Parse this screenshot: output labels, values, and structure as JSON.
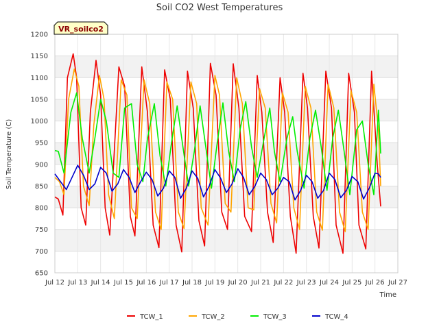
{
  "chart_data": {
    "type": "line",
    "title": "Soil CO2 West Temperatures",
    "xlabel": "Time",
    "ylabel": "Soil Temperature (C)",
    "badge": "VR_soilco2",
    "xlim": [
      12,
      27
    ],
    "ylim": [
      650,
      1200
    ],
    "x_ticks": [
      12,
      13,
      14,
      15,
      16,
      17,
      18,
      19,
      20,
      21,
      22,
      23,
      24,
      25,
      26,
      27
    ],
    "x_tick_labels": [
      "Jul 12",
      "Jul 13",
      "Jul 14",
      "Jul 15",
      "Jul 16",
      "Jul 17",
      "Jul 18",
      "Jul 19",
      "Jul 20",
      "Jul 21",
      "Jul 22",
      "Jul 23",
      "Jul 24",
      "Jul 25",
      "Jul 26",
      "Jul 27"
    ],
    "y_ticks": [
      650,
      700,
      750,
      800,
      850,
      900,
      950,
      1000,
      1050,
      1100,
      1150,
      1200
    ],
    "y_tick_labels": [
      "650",
      "700",
      "750",
      "800",
      "850",
      "900",
      "950",
      "1000",
      "1050",
      "1100",
      "1150",
      "1200"
    ],
    "grid": true,
    "legend_position": "bottom",
    "series": [
      {
        "name": "TCW_1",
        "color": "#ee0000",
        "x": [
          12.0,
          12.15,
          12.35,
          12.55,
          12.8,
          12.95,
          13.15,
          13.35,
          13.55,
          13.8,
          14.0,
          14.2,
          14.4,
          14.8,
          15.05,
          15.3,
          15.5,
          15.8,
          16.05,
          16.3,
          16.55,
          16.8,
          17.05,
          17.3,
          17.55,
          17.8,
          18.05,
          18.3,
          18.55,
          18.8,
          19.05,
          19.3,
          19.55,
          19.8,
          20.05,
          20.3,
          20.6,
          20.85,
          21.05,
          21.3,
          21.55,
          21.85,
          22.05,
          22.3,
          22.55,
          22.85,
          23.05,
          23.3,
          23.55,
          23.85,
          24.1,
          24.3,
          24.6,
          24.85,
          25.1,
          25.3,
          25.6,
          25.85,
          26.1,
          26.25
        ],
        "y": [
          825,
          820,
          783,
          1100,
          1155,
          1100,
          800,
          760,
          1020,
          1140,
          1060,
          800,
          737,
          1125,
          1080,
          780,
          735,
          1125,
          1020,
          760,
          708,
          1118,
          1050,
          760,
          698,
          1115,
          1030,
          770,
          712,
          1133,
          1060,
          790,
          750,
          1132,
          1030,
          780,
          745,
          1105,
          1020,
          790,
          720,
          1100,
          1020,
          780,
          695,
          1110,
          1030,
          780,
          707,
          1115,
          1030,
          760,
          695,
          1110,
          1020,
          760,
          705,
          1115,
          900,
          803
        ]
      },
      {
        "name": "TCW_2",
        "color": "#ffa500",
        "x": [
          12.0,
          12.2,
          12.4,
          12.6,
          12.85,
          13.05,
          13.25,
          13.5,
          13.7,
          13.95,
          14.15,
          14.35,
          14.6,
          14.9,
          15.15,
          15.35,
          15.6,
          15.9,
          16.15,
          16.4,
          16.65,
          16.9,
          17.15,
          17.4,
          17.65,
          17.95,
          18.2,
          18.4,
          18.7,
          19.0,
          19.2,
          19.45,
          19.7,
          19.95,
          20.2,
          20.45,
          20.7,
          20.95,
          21.2,
          21.45,
          21.7,
          21.95,
          22.2,
          22.45,
          22.7,
          22.95,
          23.2,
          23.45,
          23.7,
          23.95,
          24.2,
          24.45,
          24.7,
          24.95,
          25.2,
          25.45,
          25.7,
          25.95,
          26.15,
          26.25
        ],
        "y": [
          870,
          860,
          830,
          1050,
          1120,
          1080,
          850,
          805,
          990,
          1105,
          1050,
          830,
          775,
          1095,
          1060,
          800,
          775,
          1095,
          1040,
          790,
          750,
          1090,
          1050,
          790,
          752,
          1090,
          1040,
          800,
          760,
          1105,
          1060,
          810,
          790,
          1100,
          1040,
          800,
          795,
          1075,
          1030,
          810,
          765,
          1065,
          1020,
          800,
          750,
          1080,
          1030,
          790,
          748,
          1085,
          1030,
          790,
          745,
          1070,
          1020,
          790,
          750,
          1085,
          980,
          850
        ]
      },
      {
        "name": "TCW_3",
        "color": "#00ee00",
        "x": [
          12.0,
          12.15,
          12.4,
          12.7,
          12.95,
          13.2,
          13.5,
          13.75,
          14.0,
          14.25,
          14.55,
          14.8,
          15.05,
          15.35,
          15.6,
          15.85,
          16.05,
          16.35,
          16.6,
          16.85,
          17.1,
          17.35,
          17.6,
          17.85,
          18.1,
          18.35,
          18.6,
          18.85,
          19.1,
          19.35,
          19.6,
          19.85,
          20.1,
          20.35,
          20.6,
          20.85,
          21.15,
          21.4,
          21.6,
          21.85,
          22.15,
          22.4,
          22.6,
          22.9,
          23.15,
          23.4,
          23.65,
          23.9,
          24.15,
          24.4,
          24.65,
          24.9,
          25.2,
          25.45,
          25.7,
          25.95,
          26.15,
          26.25
        ],
        "y": [
          932,
          930,
          880,
          1020,
          1065,
          960,
          880,
          960,
          1050,
          1000,
          880,
          870,
          1030,
          1040,
          900,
          860,
          960,
          1040,
          920,
          850,
          950,
          1035,
          940,
          850,
          930,
          1035,
          940,
          845,
          950,
          1042,
          930,
          860,
          980,
          1045,
          940,
          870,
          960,
          1030,
          930,
          860,
          960,
          1010,
          930,
          845,
          960,
          1025,
          940,
          840,
          960,
          1025,
          930,
          830,
          980,
          1000,
          900,
          830,
          1025,
          925
        ]
      },
      {
        "name": "TCW_4",
        "color": "#0000cc",
        "x": [
          12.0,
          12.25,
          12.5,
          12.75,
          13.0,
          13.25,
          13.5,
          13.75,
          14.0,
          14.25,
          14.5,
          14.75,
          15.0,
          15.25,
          15.5,
          15.75,
          16.0,
          16.25,
          16.5,
          16.75,
          17.0,
          17.25,
          17.5,
          17.75,
          18.0,
          18.25,
          18.5,
          18.75,
          19.0,
          19.25,
          19.5,
          19.75,
          20.0,
          20.25,
          20.5,
          20.75,
          21.0,
          21.25,
          21.5,
          21.75,
          22.0,
          22.25,
          22.5,
          22.75,
          23.0,
          23.25,
          23.5,
          23.75,
          24.0,
          24.25,
          24.5,
          24.75,
          25.0,
          25.25,
          25.5,
          25.75,
          26.0,
          26.15,
          26.25
        ],
        "y": [
          878,
          860,
          842,
          870,
          898,
          875,
          842,
          855,
          893,
          880,
          838,
          855,
          888,
          870,
          835,
          860,
          882,
          865,
          827,
          845,
          885,
          870,
          822,
          845,
          885,
          868,
          825,
          850,
          888,
          868,
          835,
          855,
          890,
          870,
          830,
          850,
          880,
          865,
          830,
          845,
          870,
          860,
          818,
          840,
          875,
          860,
          822,
          840,
          880,
          865,
          823,
          840,
          872,
          860,
          820,
          845,
          880,
          878,
          870
        ]
      }
    ]
  }
}
